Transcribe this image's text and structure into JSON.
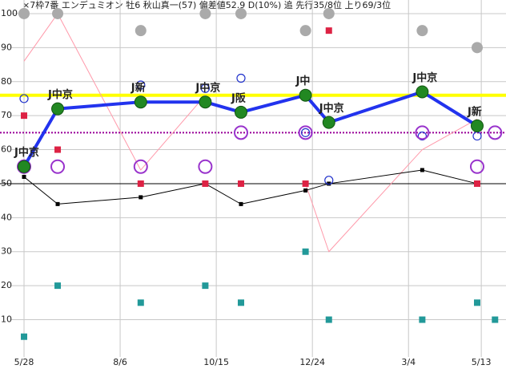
{
  "chart_data": {
    "type": "line",
    "title": "×7枠7番 エンデュミオン 牡6 秋山真一(57)  偏差値52.9 D(10%) 追  先行35/8位 上り69/3位",
    "x": [
      0,
      24.5,
      85,
      132,
      158,
      205,
      222,
      290,
      330,
      343
    ],
    "xlim": [
      -17.5,
      351
    ],
    "xticks": [
      {
        "value": 0,
        "label": "5/28"
      },
      {
        "value": 70,
        "label": "8/6"
      },
      {
        "value": 140,
        "label": "10/15"
      },
      {
        "value": 210,
        "label": "12/24"
      },
      {
        "value": 280,
        "label": "3/4"
      },
      {
        "value": 333,
        "label": "5/13"
      }
    ],
    "ylim": [
      -4.5,
      104
    ],
    "yticks": [
      10,
      20,
      30,
      40,
      50,
      60,
      70,
      80,
      90,
      100
    ],
    "grid": true,
    "reference_lines": [
      {
        "value": 76,
        "color": "#ffff00",
        "style": "solid",
        "width": 4
      },
      {
        "value": 65,
        "color": "#990099",
        "style": "dotted",
        "width": 2
      },
      {
        "value": 50,
        "color": "#000000",
        "style": "solid",
        "width": 1
      }
    ],
    "series": [
      {
        "color": "#ff99aa",
        "marker": "none",
        "line": 1,
        "values": [
          86,
          100,
          54,
          76,
          null,
          50,
          30,
          60,
          69,
          null
        ]
      },
      {
        "color": "#000000",
        "marker": "small-square",
        "line": 1,
        "values": [
          52,
          44,
          46,
          50,
          44,
          48,
          50,
          54,
          50,
          null
        ]
      },
      {
        "color": "#dd2244",
        "marker": "square",
        "line": 0,
        "values": [
          70,
          60,
          50,
          50,
          50,
          50,
          95,
          null,
          50,
          null
        ]
      },
      {
        "color": "#229999",
        "marker": "square",
        "line": 0,
        "values": [
          5,
          20,
          15,
          20,
          15,
          30,
          10,
          10,
          15,
          10
        ]
      },
      {
        "color": "#aaaaaa",
        "marker": "disc",
        "line": 0,
        "values": [
          100,
          100,
          95,
          100,
          100,
          95,
          100,
          95,
          90,
          null
        ]
      },
      {
        "color": "#2233cc",
        "marker": "ring",
        "line": 0,
        "values": [
          75,
          null,
          79,
          78,
          81,
          65,
          51,
          64,
          64,
          null
        ]
      },
      {
        "color": "#9933cc",
        "marker": "big-ring",
        "line": 0,
        "values": [
          55,
          55,
          55,
          55,
          65,
          65,
          null,
          65,
          55,
          65
        ]
      },
      {
        "color": "#2233ee",
        "marker": "green-disc",
        "line": 4,
        "values": [
          55,
          72,
          74,
          74,
          71,
          76,
          68,
          77,
          67,
          null
        ],
        "point_labels": [
          "J中京",
          "J中京",
          "J新",
          "J中京",
          "J阪",
          "J中",
          "J中京",
          "J中京",
          "J新",
          null
        ]
      }
    ]
  }
}
